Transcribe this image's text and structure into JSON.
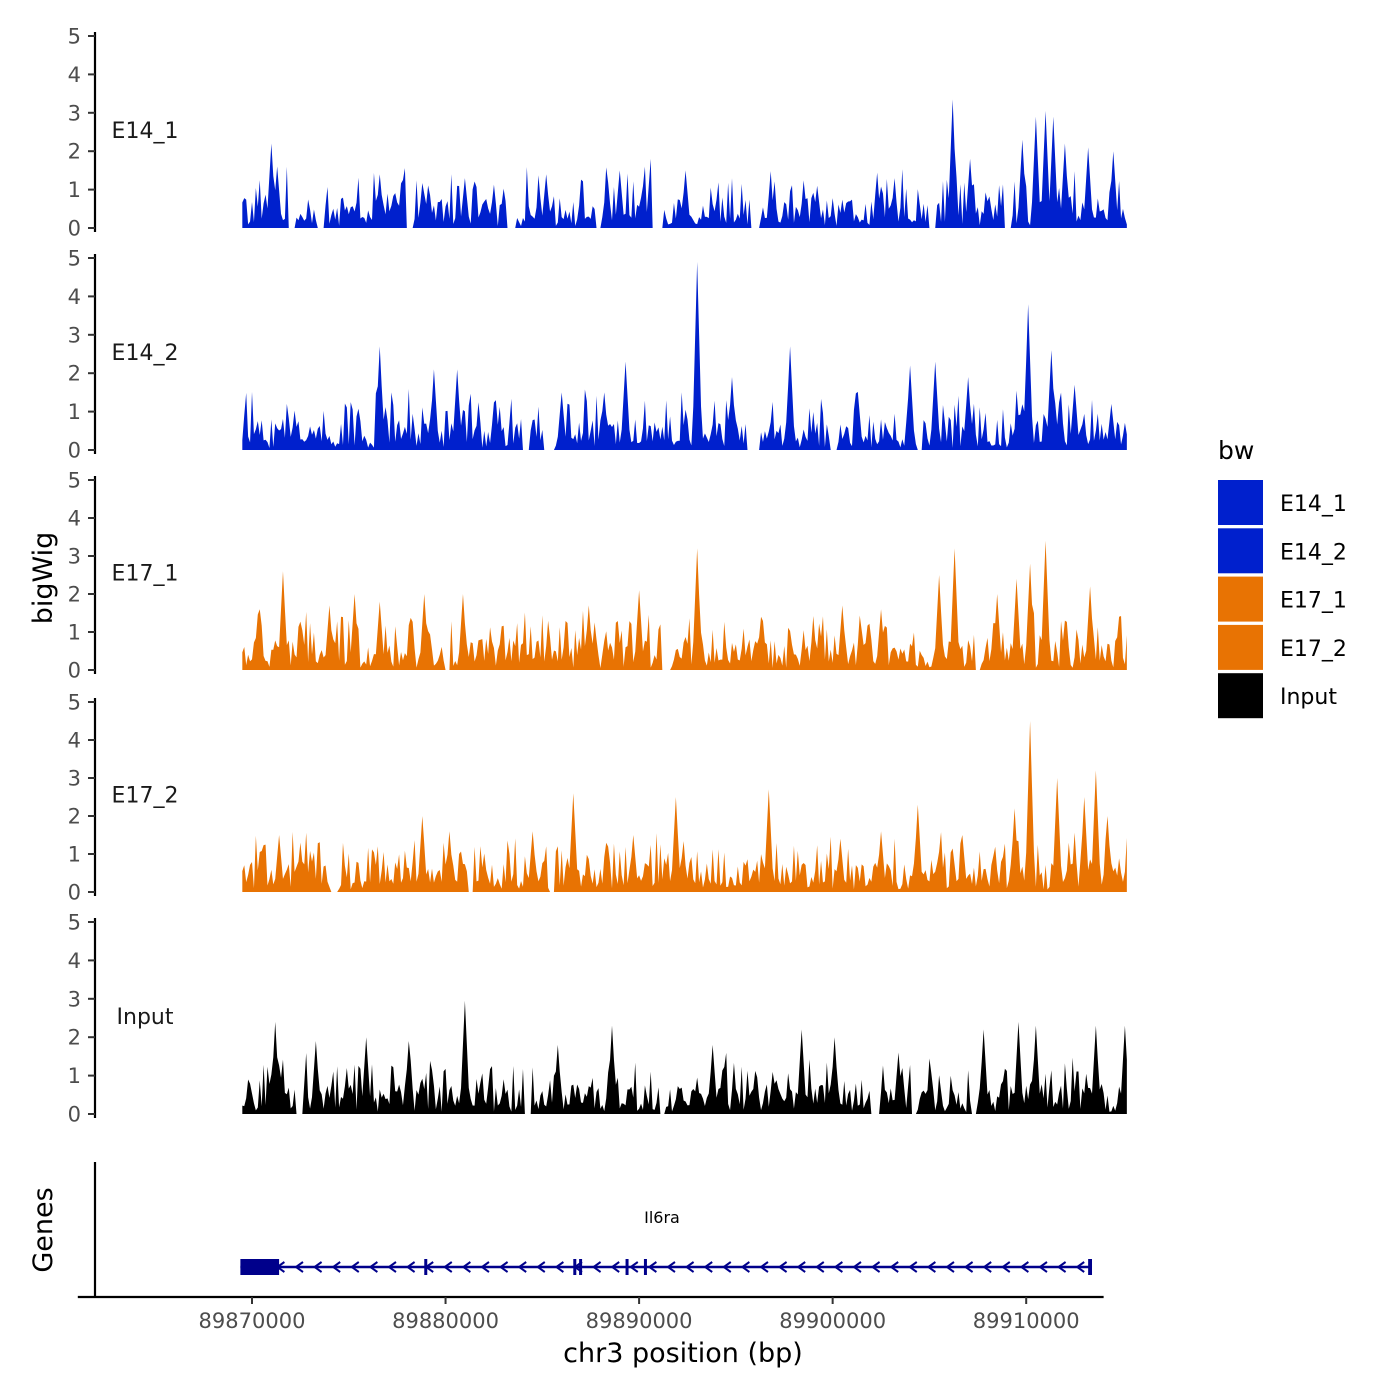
{
  "chart_data": {
    "type": "area",
    "xlabel": "chr3 position (bp)",
    "ylabel": "bigWig",
    "genes_axis_label": "Genes",
    "xlim": [
      89861000,
      89914000
    ],
    "x_ticks": [
      89870000,
      89880000,
      89890000,
      89900000,
      89910000
    ],
    "x_tick_labels": [
      "89870000",
      "89880000",
      "89890000",
      "89900000",
      "89910000"
    ],
    "ylim": [
      0,
      5
    ],
    "y_ticks": [
      0,
      1,
      2,
      3,
      4,
      5
    ],
    "y_tick_labels": [
      "0",
      "1",
      "2",
      "3",
      "4",
      "5"
    ],
    "legend": {
      "title": "bw",
      "entries": [
        {
          "label": "E14_1",
          "color": "#0020CD"
        },
        {
          "label": "E14_2",
          "color": "#0020CD"
        },
        {
          "label": "E17_1",
          "color": "#E87303"
        },
        {
          "label": "E17_2",
          "color": "#E87303"
        },
        {
          "label": "Input",
          "color": "#000000"
        }
      ]
    },
    "signal_region": [
      89869500,
      89915200
    ],
    "series": [
      {
        "name": "E14_1",
        "color": "#0020CD",
        "max": 3.35,
        "gaps": [
          [
            89871850,
            89872200
          ],
          [
            89873400,
            89873700
          ],
          [
            89878000,
            89878300
          ],
          [
            89883200,
            89883600
          ],
          [
            89887800,
            89888000
          ],
          [
            89890700,
            89891200
          ],
          [
            89895800,
            89896200
          ],
          [
            89905000,
            89905300
          ],
          [
            89908900,
            89909200
          ]
        ],
        "peaks": [
          [
            89871000,
            2.2
          ],
          [
            89871300,
            1.6
          ],
          [
            89876600,
            1.4
          ],
          [
            89881000,
            1.3
          ],
          [
            89885200,
            1.4
          ],
          [
            89889000,
            1.5
          ],
          [
            89890600,
            1.8
          ],
          [
            89892400,
            1.5
          ],
          [
            89899200,
            1.1
          ],
          [
            89906200,
            3.35
          ],
          [
            89907100,
            1.8
          ],
          [
            89909800,
            2.3
          ],
          [
            89910500,
            2.9
          ],
          [
            89911000,
            3.05
          ],
          [
            89911400,
            2.9
          ],
          [
            89912000,
            2.2
          ],
          [
            89913200,
            2.1
          ],
          [
            89914500,
            2.0
          ]
        ]
      },
      {
        "name": "E14_2",
        "color": "#0020CD",
        "max": 4.9,
        "gaps": [
          [
            89884000,
            89884300
          ],
          [
            89885100,
            89885600
          ],
          [
            89895600,
            89896200
          ],
          [
            89899900,
            89900200
          ],
          [
            89904400,
            89904600
          ]
        ],
        "peaks": [
          [
            89876600,
            2.7
          ],
          [
            89879400,
            2.1
          ],
          [
            89880600,
            2.1
          ],
          [
            89886000,
            1.5
          ],
          [
            89888200,
            1.5
          ],
          [
            89889300,
            2.3
          ],
          [
            89893000,
            4.9
          ],
          [
            89894800,
            1.9
          ],
          [
            89897800,
            2.7
          ],
          [
            89901300,
            1.5
          ],
          [
            89904000,
            2.2
          ],
          [
            89905300,
            2.3
          ],
          [
            89907000,
            1.9
          ],
          [
            89910100,
            3.8
          ],
          [
            89911300,
            2.6
          ],
          [
            89912500,
            1.7
          ],
          [
            89914400,
            1.2
          ]
        ]
      },
      {
        "name": "E17_1",
        "color": "#E87303",
        "max": 3.4,
        "gaps": [
          [
            89880000,
            89880200
          ],
          [
            89891200,
            89891600
          ],
          [
            89907400,
            89907600
          ]
        ],
        "peaks": [
          [
            89870400,
            1.6
          ],
          [
            89871600,
            2.6
          ],
          [
            89874000,
            1.7
          ],
          [
            89875300,
            2.0
          ],
          [
            89876600,
            1.8
          ],
          [
            89878900,
            2.0
          ],
          [
            89880900,
            2.0
          ],
          [
            89882900,
            1.1
          ],
          [
            89887400,
            1.7
          ],
          [
            89890000,
            2.1
          ],
          [
            89891100,
            1.2
          ],
          [
            89893000,
            3.2
          ],
          [
            89896300,
            1.4
          ],
          [
            89900500,
            1.7
          ],
          [
            89902500,
            1.6
          ],
          [
            89905500,
            2.5
          ],
          [
            89906300,
            3.2
          ],
          [
            89908500,
            2.0
          ],
          [
            89909500,
            2.4
          ],
          [
            89910200,
            2.8
          ],
          [
            89911000,
            3.4
          ],
          [
            89913300,
            2.2
          ],
          [
            89914800,
            1.4
          ]
        ]
      },
      {
        "name": "E17_2",
        "color": "#E87303",
        "max": 4.5,
        "gaps": [
          [
            89874100,
            89874400
          ],
          [
            89881200,
            89881400
          ],
          [
            89885400,
            89885600
          ]
        ],
        "peaks": [
          [
            89871400,
            1.5
          ],
          [
            89872500,
            1.3
          ],
          [
            89878800,
            2.0
          ],
          [
            89880200,
            1.6
          ],
          [
            89884500,
            1.6
          ],
          [
            89886600,
            2.6
          ],
          [
            89889700,
            1.5
          ],
          [
            89891900,
            2.5
          ],
          [
            89896700,
            2.7
          ],
          [
            89900400,
            1.4
          ],
          [
            89902500,
            1.6
          ],
          [
            89904400,
            2.3
          ],
          [
            89906700,
            1.5
          ],
          [
            89909400,
            2.2
          ],
          [
            89910200,
            4.5
          ],
          [
            89911600,
            3.0
          ],
          [
            89913000,
            2.5
          ],
          [
            89913600,
            3.2
          ],
          [
            89914200,
            2.0
          ]
        ]
      },
      {
        "name": "Input",
        "color": "#000000",
        "max": 2.95,
        "gaps": [
          [
            89872300,
            89872600
          ],
          [
            89884100,
            89884400
          ],
          [
            89891100,
            89891300
          ],
          [
            89902000,
            89902400
          ],
          [
            89904100,
            89904300
          ],
          [
            89907200,
            89907400
          ]
        ],
        "peaks": [
          [
            89871200,
            2.4
          ],
          [
            89873300,
            1.9
          ],
          [
            89875900,
            2.0
          ],
          [
            89878100,
            1.9
          ],
          [
            89881000,
            2.95
          ],
          [
            89885800,
            1.8
          ],
          [
            89888600,
            2.3
          ],
          [
            89893800,
            1.8
          ],
          [
            89898400,
            2.2
          ],
          [
            89900100,
            2.0
          ],
          [
            89903400,
            1.6
          ],
          [
            89907800,
            2.2
          ],
          [
            89909600,
            2.4
          ],
          [
            89910500,
            2.3
          ],
          [
            89913600,
            2.3
          ],
          [
            89915100,
            2.3
          ]
        ]
      }
    ],
    "gene": {
      "name": "Il6ra",
      "color": "#00008B",
      "start": 89869400,
      "end": 89913400,
      "strand": "-",
      "exons": [
        [
          89869400,
          89871400
        ],
        [
          89878900,
          89878950
        ],
        [
          89886600,
          89886700
        ],
        [
          89886900,
          89887000
        ],
        [
          89889300,
          89889350
        ],
        [
          89890250,
          89890350
        ],
        [
          89913200,
          89913400
        ]
      ]
    }
  }
}
